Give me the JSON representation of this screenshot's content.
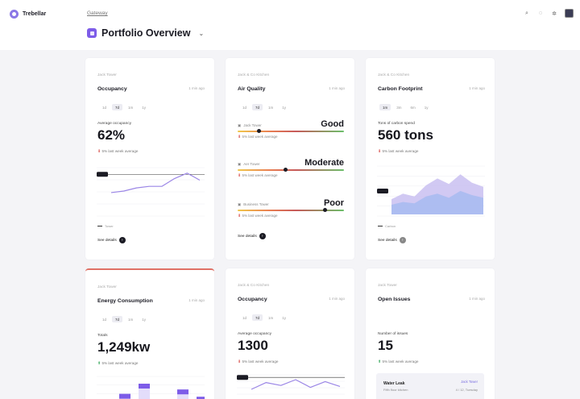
{
  "app": {
    "name": "Trebellar"
  },
  "breadcrumb": "Gateway",
  "page_title": "Portfolio Overview",
  "header_icons": [
    "search-icon",
    "help-icon",
    "settings-icon"
  ],
  "cards": {
    "occupancy1": {
      "subtitle": "Jack Tower",
      "title": "Occupancy",
      "time": "1 min ago",
      "tabs": [
        "1d",
        "7d",
        "1m",
        "1y"
      ],
      "metric_label": "Average occupancy",
      "metric_value": "62%",
      "delta": "5% last week average",
      "legend": "Tower",
      "see_details": "See details",
      "chart_data": {
        "type": "line",
        "series": [
          {
            "values": [
              28,
              30,
              34,
              36,
              36,
              46,
              53,
              44
            ]
          }
        ],
        "ylim": [
          0,
          60
        ]
      }
    },
    "air_quality": {
      "subtitle": "Jack & Co Kitchen",
      "title": "Air Quality",
      "time": "1 min ago",
      "tabs": [
        "1d",
        "7d",
        "1m",
        "1y"
      ],
      "rows": [
        {
          "name": "Jack Tower",
          "rating": "Good",
          "delta": "5% last week average",
          "level": 0.2
        },
        {
          "name": "Aer Tower",
          "rating": "Moderate",
          "delta": "5% last week average",
          "level": 0.45
        },
        {
          "name": "Business Tower",
          "rating": "Poor",
          "delta": "5% last week average",
          "level": 0.82
        }
      ],
      "see_details": "See details"
    },
    "carbon": {
      "subtitle": "Jack & Co Kitchen",
      "title": "Carbon Footprint",
      "time": "1 min ago",
      "tabs": [
        "1m",
        "3m",
        "6m",
        "1y"
      ],
      "metric_label": "Tons of carbon spend",
      "metric_value": "560 tons",
      "delta": "5% last week average",
      "legend": "Carbon",
      "see_details": "See details",
      "chart_data": {
        "type": "area",
        "series": [
          {
            "values": [
              22,
              30,
              26,
              42,
              52,
              44,
              58,
              46,
              40
            ]
          },
          {
            "values": [
              14,
              18,
              16,
              26,
              30,
              24,
              34,
              28,
              24
            ]
          }
        ],
        "ylim": [
          0,
          70
        ]
      }
    },
    "energy": {
      "subtitle": "Jack Tower",
      "title": "Energy Consumption",
      "time": "1 min ago",
      "tabs": [
        "1d",
        "7d",
        "1m",
        "1y"
      ],
      "metric_label": "Totals",
      "metric_value": "1,249kw",
      "delta": "5% last week average",
      "chart_data": {
        "type": "bar",
        "series": [
          {
            "values": [
              40,
              75,
              20,
              55,
              30
            ]
          }
        ],
        "ylim": [
          0,
          100
        ]
      }
    },
    "occupancy2": {
      "subtitle": "Jack & Co Kitchen",
      "title": "Occupancy",
      "time": "1 min ago",
      "tabs": [
        "1d",
        "7d",
        "1m",
        "1y"
      ],
      "metric_label": "Average occupancy",
      "metric_value": "1300",
      "delta": "5% last week average",
      "chart_data": {
        "type": "line",
        "series": [
          {
            "values": [
              20,
              34,
              28,
              40,
              24,
              36,
              26
            ]
          }
        ],
        "ylim": [
          0,
          50
        ]
      }
    },
    "issues": {
      "subtitle": "Jack Tower",
      "title": "Open Issues",
      "time": "1 min ago",
      "metric_label": "Number of issues",
      "metric_value": "15",
      "delta": "5% last week average",
      "issue": {
        "title": "Water Leak",
        "badge": "Jack Tower",
        "sub": "Fifth floor kitchen",
        "meta": "4 / 12, Tuesday"
      }
    }
  },
  "colors": {
    "accent": "#7d5ce8",
    "line": "#9b86e6",
    "area1": "#c9c0f1",
    "area2": "#a7bbf0",
    "highlight": "#e07166"
  }
}
